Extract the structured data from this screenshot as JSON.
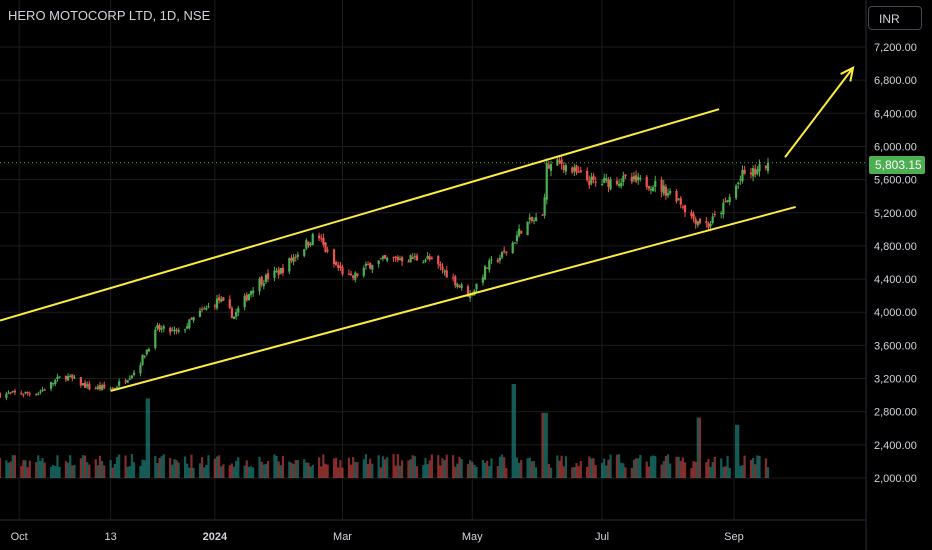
{
  "header": {
    "symbol_title": "HERO MOTOCORP LTD, 1D, NSE",
    "currency": "INR"
  },
  "last_price_label": "5,803.15",
  "colors": {
    "background": "#000000",
    "up": "#26a69a",
    "up_body": "#4caf50",
    "down": "#ef5350",
    "trendline": "#ffeb3b",
    "axis_text": "#d1d4dc",
    "grid": "#1c1c1c",
    "price_line": "#4caf50"
  },
  "chart_data": {
    "type": "candlestick",
    "title": "HERO MOTOCORP LTD, 1D, NSE",
    "ylim": [
      1900,
      7600
    ],
    "y_ticks": [
      7200,
      6800,
      6400,
      6000,
      5600,
      5200,
      4800,
      4400,
      4000,
      3600,
      3200,
      2800,
      2400,
      2000
    ],
    "y_tick_labels": [
      "7,200.00",
      "6,800.00",
      "6,400.00",
      "6,000.00",
      "5,600.00",
      "5,200.00",
      "4,800.00",
      "4,400.00",
      "4,000.00",
      "3,600.00",
      "3,200.00",
      "2,800.00",
      "2,400.00",
      "2,000.00"
    ],
    "x_tick_labels": [
      "Oct",
      "13",
      "2024",
      "Mar",
      "May",
      "Jul",
      "Sep"
    ],
    "x_tick_dates": [
      "2023-10-01",
      "2023-11-13",
      "2024-01-01",
      "2024-03-01",
      "2024-05-01",
      "2024-07-01",
      "2024-09-01"
    ],
    "last_price": 5803.15,
    "price_anchors": [
      {
        "date": "2023-09-22",
        "close": 3010
      },
      {
        "date": "2023-10-10",
        "close": 3030
      },
      {
        "date": "2023-10-22",
        "close": 3240
      },
      {
        "date": "2023-11-03",
        "close": 3090
      },
      {
        "date": "2023-11-14",
        "close": 3080
      },
      {
        "date": "2023-11-25",
        "close": 3300
      },
      {
        "date": "2023-12-05",
        "close": 3800
      },
      {
        "date": "2023-12-15",
        "close": 3750
      },
      {
        "date": "2023-12-24",
        "close": 3970
      },
      {
        "date": "2024-01-03",
        "close": 4150
      },
      {
        "date": "2024-01-10",
        "close": 3950
      },
      {
        "date": "2024-01-20",
        "close": 4350
      },
      {
        "date": "2024-02-01",
        "close": 4500
      },
      {
        "date": "2024-02-12",
        "close": 4800
      },
      {
        "date": "2024-02-18",
        "close": 4950
      },
      {
        "date": "2024-02-25",
        "close": 4600
      },
      {
        "date": "2024-03-05",
        "close": 4400
      },
      {
        "date": "2024-03-15",
        "close": 4600
      },
      {
        "date": "2024-03-28",
        "close": 4650
      },
      {
        "date": "2024-04-10",
        "close": 4650
      },
      {
        "date": "2024-04-20",
        "close": 4450
      },
      {
        "date": "2024-04-30",
        "close": 4200
      },
      {
        "date": "2024-05-08",
        "close": 4550
      },
      {
        "date": "2024-05-18",
        "close": 4750
      },
      {
        "date": "2024-05-25",
        "close": 5050
      },
      {
        "date": "2024-06-03",
        "close": 5150
      },
      {
        "date": "2024-06-05",
        "close": 5750
      },
      {
        "date": "2024-06-12",
        "close": 5800
      },
      {
        "date": "2024-06-20",
        "close": 5650
      },
      {
        "date": "2024-06-28",
        "close": 5550
      },
      {
        "date": "2024-07-08",
        "close": 5600
      },
      {
        "date": "2024-07-25",
        "close": 5550
      },
      {
        "date": "2024-08-05",
        "close": 5400
      },
      {
        "date": "2024-08-12",
        "close": 5150
      },
      {
        "date": "2024-08-20",
        "close": 5050
      },
      {
        "date": "2024-08-28",
        "close": 5300
      },
      {
        "date": "2024-09-05",
        "close": 5650
      },
      {
        "date": "2024-09-12",
        "close": 5700
      },
      {
        "date": "2024-09-17",
        "close": 5803.15
      }
    ],
    "volume_spikes": [
      {
        "date": "2023-12-01",
        "scale": 2.4
      },
      {
        "date": "2024-05-20",
        "scale": 3.0
      },
      {
        "date": "2024-06-04",
        "scale": 1.8
      },
      {
        "date": "2024-08-16",
        "scale": 1.6
      },
      {
        "date": "2024-09-02",
        "scale": 1.3
      }
    ],
    "trendlines": [
      {
        "name": "upper-channel",
        "points": [
          {
            "date": "2023-09-22",
            "price": 3900
          },
          {
            "date": "2024-08-25",
            "price": 6450
          }
        ]
      },
      {
        "name": "lower-channel",
        "points": [
          {
            "date": "2023-11-13",
            "price": 3050
          },
          {
            "date": "2024-09-30",
            "price": 5270
          }
        ]
      },
      {
        "name": "projection-arrow",
        "points": [
          {
            "date": "2024-09-25",
            "price": 5870
          },
          {
            "date": "2024-10-27",
            "price": 6950
          }
        ]
      }
    ]
  }
}
